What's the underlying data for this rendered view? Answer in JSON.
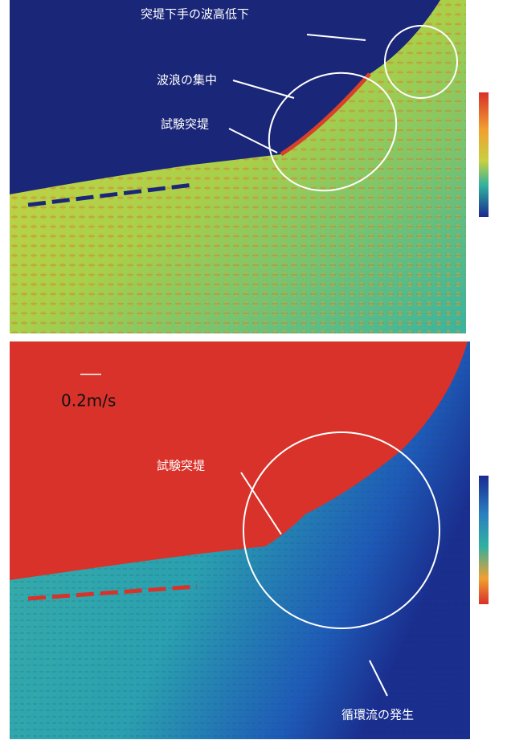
{
  "top_panel": {
    "annotations": [
      "突堤下手の波高低下",
      "波浪の集中",
      "試験突堤"
    ]
  },
  "bottom_panel": {
    "scale_label": "0.2m/s",
    "annotations": [
      "試験突堤",
      "循環流の発生"
    ]
  }
}
